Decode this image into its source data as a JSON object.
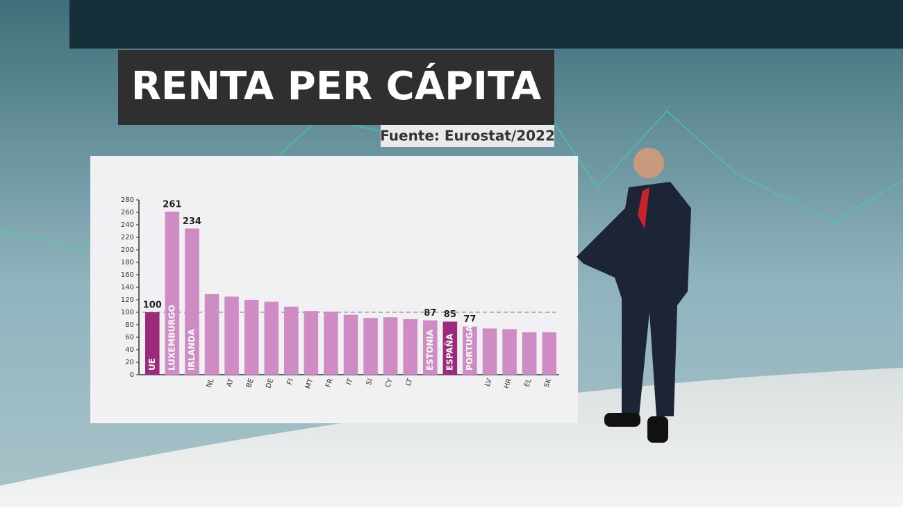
{
  "chart_data": {
    "type": "bar",
    "title": "RENTA PER CÁPITA",
    "subtitle": "Fuente: Eurostat/2022",
    "categories": [
      "UE",
      "LUXEMBURGO",
      "IRLANDA",
      "NL",
      "AT",
      "BE",
      "DE",
      "FI",
      "MT",
      "FR",
      "IT",
      "SI",
      "CY",
      "LT",
      "ESTONIA",
      "ESPAÑA",
      "PORTUGAL",
      "LV",
      "HR",
      "EL",
      "SK"
    ],
    "values": [
      100,
      261,
      234,
      129,
      125,
      120,
      117,
      109,
      102,
      101,
      96,
      91,
      92,
      89,
      87,
      85,
      77,
      74,
      73,
      68,
      68
    ],
    "value_labels": [
      "100",
      "261",
      "234",
      null,
      null,
      null,
      null,
      null,
      null,
      null,
      null,
      null,
      null,
      null,
      "87",
      "85",
      "77",
      null,
      null,
      null,
      null
    ],
    "colors": [
      "#9c2a7c",
      "#cf8cc4",
      "#cf8cc4",
      "#cf8cc4",
      "#cf8cc4",
      "#cf8cc4",
      "#cf8cc4",
      "#cf8cc4",
      "#cf8cc4",
      "#cf8cc4",
      "#cf8cc4",
      "#cf8cc4",
      "#cf8cc4",
      "#cf8cc4",
      "#cf8cc4",
      "#9c2a7c",
      "#cf8cc4",
      "#cf8cc4",
      "#cf8cc4",
      "#cf8cc4",
      "#cf8cc4"
    ],
    "ylim": [
      0,
      280
    ],
    "yticks": [
      0,
      20,
      40,
      60,
      80,
      100,
      120,
      140,
      160,
      180,
      200,
      220,
      240,
      260,
      280
    ],
    "reference_line": 100,
    "grid": false
  }
}
